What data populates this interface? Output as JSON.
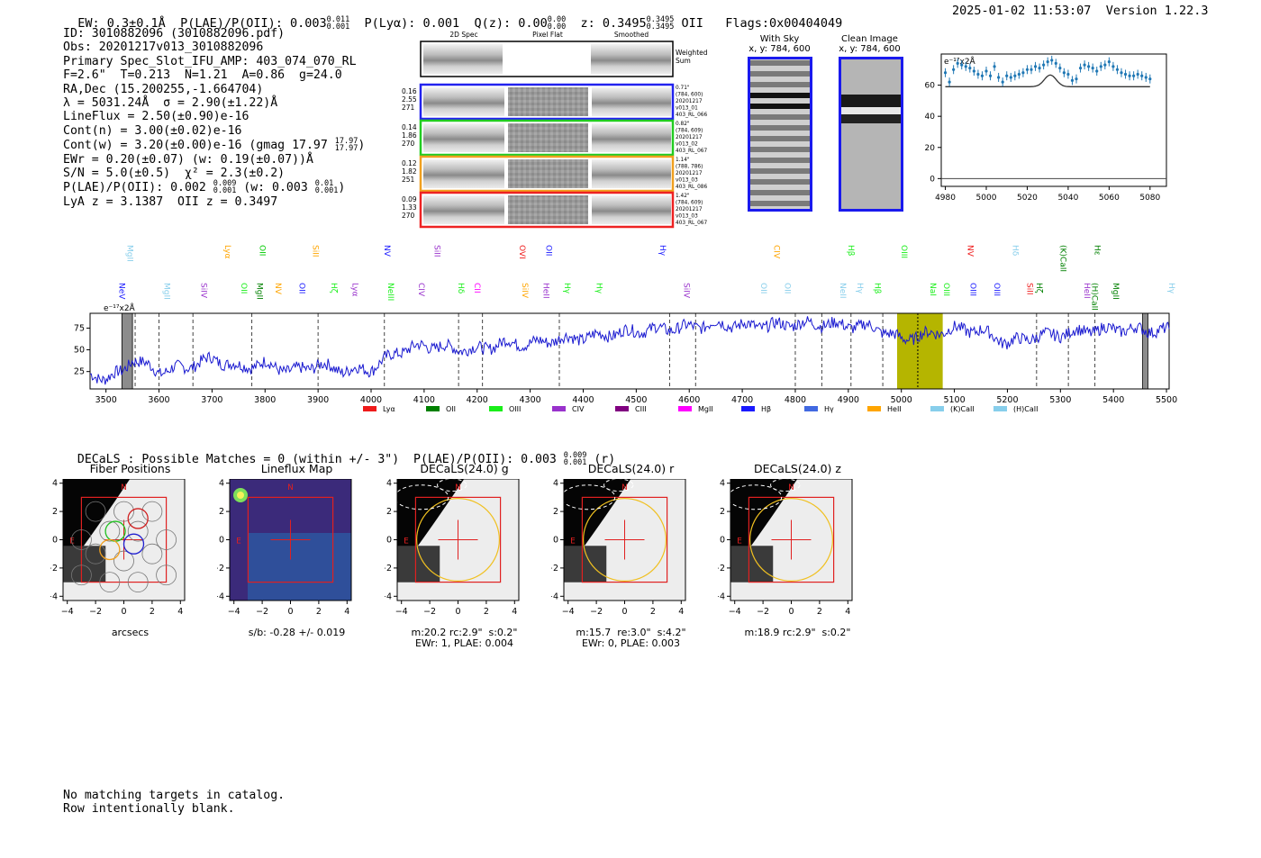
{
  "header": {
    "ew": "EW: 0.3±0.1Å",
    "plae_label": "P(LAE)/P(OII): 0.003",
    "plae_hi": "0.011",
    "plae_lo": "0.001",
    "plya": "P(Lyα): 0.001",
    "qz_label": "Q(z): 0.00",
    "qz_hi": "0.00",
    "qz_lo": "0.00",
    "z_label": "z: 0.3495",
    "z_hi": "0.3495",
    "z_lo": "0.3495",
    "z_line": "OII",
    "flags": "Flags:0x00404049",
    "datetime": "2025-01-02 11:53:07",
    "version": "Version 1.22.3"
  },
  "info": {
    "id": "ID: 3010882096 (3010882096.pdf)",
    "obs": "Obs: 20201217v013_3010882096",
    "primary": "Primary Spec_Slot_IFU_AMP: 403_074_070_RL",
    "fit": "F=2.6\"  T=0.213  N=1.21  A=0.86  g=24.0",
    "radec": "RA,Dec (15.200255,-1.664704)",
    "lambda": "λ = 5031.24Å  σ = 2.90(±1.22)Å",
    "lineflux": "LineFlux = 2.50(±0.90)e-16",
    "contn": "Cont(n) = 3.00(±0.02)e-16",
    "contw": "Cont(w) = 3.20(±0.00)e-16 (gmag 17.97",
    "contw_hi": "17.97",
    "contw_lo": "17.97",
    "contw_end": ")",
    "ewr": "EWr = 0.20(±0.07) (w: 0.19(±0.07))Å",
    "sn": "S/N = 5.0(±0.5)  χ² = 2.3(±0.2)",
    "plae2": "P(LAE)/P(OII): 0.002",
    "plae2_hi": "0.009",
    "plae2_lo": "0.001",
    "plae2_w": "(w: 0.003",
    "plae2_w_hi": "0.01",
    "plae2_w_lo": "0.001",
    "plae2_end": ")",
    "lyaz": "LyA z = 3.1387  OII z = 0.3497"
  },
  "cutouts": {
    "col1": "2D Spec",
    "col2": "Pixel Flat",
    "col3": "Smoothed",
    "weighted": [
      "Weighted",
      "Sum"
    ],
    "rows": [
      {
        "left": [
          "0.16",
          "2.55",
          "271"
        ],
        "right": [
          "0.71\"",
          "(784, 600)",
          "20201217",
          "v013_01",
          "403_RL_066"
        ],
        "color": "#2222ee"
      },
      {
        "left": [
          "0.14",
          "1.86",
          "270"
        ],
        "right": [
          "0.82\"",
          "(784, 609)",
          "20201217",
          "v013_02",
          "403_RL_067"
        ],
        "color": "#22cc22"
      },
      {
        "left": [
          "0.12",
          "1.82",
          "251"
        ],
        "right": [
          "1.14\"",
          "(788, 786)",
          "20201217",
          "v013_03",
          "403_RL_086"
        ],
        "color": "#f0a020"
      },
      {
        "left": [
          "0.09",
          "1.33",
          "270"
        ],
        "right": [
          "1.42\"",
          "(784, 609)",
          "20201217",
          "v013_03",
          "403_RL_067"
        ],
        "color": "#ee2222"
      }
    ],
    "withsky_title": "With Sky",
    "withsky_xy": "x, y: 784, 600",
    "clean_title": "Clean Image",
    "clean_xy": "x, y: 784, 600"
  },
  "zoom_chart": {
    "type": "scatter",
    "ylabel": "e⁻¹⁷x2Å",
    "xlim": [
      4978,
      5088
    ],
    "ylim": [
      -5,
      80
    ],
    "xticks": [
      "4980",
      "5000",
      "5020",
      "5040",
      "5060",
      "5080"
    ],
    "yticks": [
      "0",
      "20",
      "40",
      "60"
    ],
    "x": [
      4980,
      4982,
      4984,
      4986,
      4988,
      4990,
      4992,
      4994,
      4996,
      4998,
      5000,
      5002,
      5004,
      5006,
      5008,
      5010,
      5012,
      5014,
      5016,
      5018,
      5020,
      5022,
      5024,
      5026,
      5028,
      5030,
      5032,
      5034,
      5036,
      5038,
      5040,
      5042,
      5044,
      5046,
      5048,
      5050,
      5052,
      5054,
      5056,
      5058,
      5060,
      5062,
      5064,
      5066,
      5068,
      5070,
      5072,
      5074,
      5076,
      5078,
      5080
    ],
    "values": [
      68,
      62,
      70,
      74,
      73,
      72,
      71,
      69,
      67,
      66,
      69,
      66,
      72,
      65,
      62,
      66,
      65,
      66,
      67,
      68,
      70,
      70,
      72,
      71,
      73,
      75,
      76,
      74,
      71,
      68,
      67,
      63,
      64,
      71,
      73,
      72,
      71,
      69,
      72,
      73,
      75,
      72,
      70,
      68,
      67,
      66,
      66,
      67,
      66,
      65,
      64
    ],
    "model_baseline": 59,
    "model_peak": 66.5,
    "model_center": 5031.24
  },
  "spectrum_chart": {
    "type": "line",
    "ylabel": "e⁻¹⁷x2Å",
    "xlim": [
      3470,
      5505
    ],
    "ylim": [
      5,
      92
    ],
    "xticks": [
      "3500",
      "3600",
      "3700",
      "3800",
      "3900",
      "4000",
      "4100",
      "4200",
      "4300",
      "4400",
      "4500",
      "4600",
      "4700",
      "4800",
      "4900",
      "5000",
      "5100",
      "5200",
      "5300",
      "5400",
      "5500"
    ],
    "yticks": [
      "25",
      "50",
      "75"
    ],
    "anchors_x": [
      3470,
      3500,
      3530,
      3550,
      3600,
      3650,
      3700,
      3750,
      3800,
      3850,
      3900,
      3950,
      4000,
      4050,
      4100,
      4150,
      4200,
      4250,
      4300,
      4350,
      4400,
      4450,
      4500,
      4550,
      4600,
      4650,
      4700,
      4750,
      4800,
      4850,
      4900,
      4950,
      5000,
      5050,
      5100,
      5150,
      5200,
      5250,
      5300,
      5350,
      5400,
      5450,
      5505
    ],
    "anchors_y": [
      20,
      18,
      24,
      40,
      25,
      30,
      40,
      30,
      34,
      25,
      33,
      26,
      28,
      48,
      55,
      52,
      50,
      58,
      57,
      62,
      64,
      68,
      72,
      74,
      76,
      80,
      78,
      78,
      80,
      80,
      78,
      76,
      62,
      68,
      74,
      72,
      58,
      65,
      68,
      72,
      74,
      73,
      72
    ],
    "vlines": [
      3555,
      3600,
      3664,
      3775,
      3900,
      4025,
      4165,
      4210,
      4355,
      4563,
      4612,
      4800,
      4850,
      4905,
      4965,
      5255,
      5315,
      5365
    ],
    "shade_start": 4992,
    "shade_end": 5078,
    "shade_center": 5031,
    "gray_bands": [
      [
        3530,
        3550
      ],
      [
        5455,
        5465
      ]
    ],
    "labels": [
      {
        "x": 3520,
        "text": "NeV",
        "color": "#1a1aff"
      },
      {
        "x": 3535,
        "text": "MgII",
        "color": "#87ceeb"
      },
      {
        "x": 3605,
        "text": "MgII",
        "color": "#87ceeb"
      },
      {
        "x": 3675,
        "text": "SiIV",
        "color": "#9932cc"
      },
      {
        "x": 3720,
        "text": "Lyα",
        "color": "#ffa500"
      },
      {
        "x": 3750,
        "text": "OII",
        "color": "#1aee1a"
      },
      {
        "x": 3780,
        "text": "MgII",
        "color": "#008000"
      },
      {
        "x": 3785,
        "text": "OII",
        "color": "#00cc00"
      },
      {
        "x": 3815,
        "text": "NV",
        "color": "#ffa500"
      },
      {
        "x": 3860,
        "text": "OII",
        "color": "#1a1aff"
      },
      {
        "x": 3885,
        "text": "SiII",
        "color": "#ffa500"
      },
      {
        "x": 3920,
        "text": "Hζ",
        "color": "#1aee1a"
      },
      {
        "x": 3960,
        "text": "Lyα",
        "color": "#9932cc"
      },
      {
        "x": 4020,
        "text": "NV",
        "color": "#1a1aff"
      },
      {
        "x": 4027,
        "text": "NeIII",
        "color": "#1aee1a"
      },
      {
        "x": 4085,
        "text": "CIV",
        "color": "#9932cc"
      },
      {
        "x": 4115,
        "text": "SiII",
        "color": "#9932cc"
      },
      {
        "x": 4160,
        "text": "Hδ",
        "color": "#1aee1a"
      },
      {
        "x": 4190,
        "text": "CII",
        "color": "#ff00ff"
      },
      {
        "x": 4275,
        "text": "OVI",
        "color": "#ee1a1a"
      },
      {
        "x": 4280,
        "text": "SiIV",
        "color": "#ffa500"
      },
      {
        "x": 4320,
        "text": "HeII",
        "color": "#9932cc"
      },
      {
        "x": 4325,
        "text": "OII",
        "color": "#1a1aff"
      },
      {
        "x": 4360,
        "text": "Hγ",
        "color": "#1aee1a"
      },
      {
        "x": 4420,
        "text": "Hγ",
        "color": "#1aee1a"
      },
      {
        "x": 4540,
        "text": "Hγ",
        "color": "#1a1aff"
      },
      {
        "x": 4585,
        "text": "SiIV",
        "color": "#9932cc"
      },
      {
        "x": 4730,
        "text": "OII",
        "color": "#87ceeb"
      },
      {
        "x": 4755,
        "text": "CIV",
        "color": "#ffa500"
      },
      {
        "x": 4775,
        "text": "OII",
        "color": "#87ceeb"
      },
      {
        "x": 4880,
        "text": "NeII",
        "color": "#87ceeb"
      },
      {
        "x": 4895,
        "text": "Hβ",
        "color": "#1aee1a"
      },
      {
        "x": 4912,
        "text": "Hγ",
        "color": "#87ceeb"
      },
      {
        "x": 4945,
        "text": "Hβ",
        "color": "#1aee1a"
      },
      {
        "x": 4995,
        "text": "OIII",
        "color": "#1aee1a"
      },
      {
        "x": 5050,
        "text": "NaI",
        "color": "#1aee1a"
      },
      {
        "x": 5075,
        "text": "OIII",
        "color": "#1aee1a"
      },
      {
        "x": 5120,
        "text": "NV",
        "color": "#ee1a1a"
      },
      {
        "x": 5125,
        "text": "OIII",
        "color": "#1a1aff"
      },
      {
        "x": 5170,
        "text": "OIII",
        "color": "#1a1aff"
      },
      {
        "x": 5205,
        "text": "Hδ",
        "color": "#87ceeb"
      },
      {
        "x": 5232,
        "text": "SiII",
        "color": "#ee1a1a"
      },
      {
        "x": 5250,
        "text": "Hζ",
        "color": "#008000"
      },
      {
        "x": 5295,
        "text": "(K)CaII",
        "color": "#008000"
      },
      {
        "x": 5340,
        "text": "HeII",
        "color": "#9932cc"
      },
      {
        "x": 5355,
        "text": "(H)CaII",
        "color": "#008000"
      },
      {
        "x": 5360,
        "text": "Hε",
        "color": "#008000"
      },
      {
        "x": 5395,
        "text": "MgII",
        "color": "#008000"
      },
      {
        "x": 5500,
        "text": "Hγ",
        "color": "#87ceeb"
      }
    ]
  },
  "legend": [
    {
      "label": "Lyα",
      "color": "#ee1a1a"
    },
    {
      "label": "OII",
      "color": "#008000"
    },
    {
      "label": "OIII",
      "color": "#1aee1a"
    },
    {
      "label": "CIV",
      "color": "#9932cc"
    },
    {
      "label": "CIII",
      "color": "#800080"
    },
    {
      "label": "MgII",
      "color": "#ff00ff"
    },
    {
      "label": "Hβ",
      "color": "#1a1aff"
    },
    {
      "label": "Hγ",
      "color": "#4169e1"
    },
    {
      "label": "HeII",
      "color": "#ffa500"
    },
    {
      "label": "(K)CaII",
      "color": "#87ceeb"
    },
    {
      "label": "(H)CaII",
      "color": "#87ceeb"
    }
  ],
  "decals": {
    "header": "DECaLS : Possible Matches = 0 (within +/- 3\")  P(LAE)/P(OII): 0.003",
    "header_hi": "0.009",
    "header_lo": "0.001",
    "header_end": "(r)",
    "panels": [
      {
        "title": "Fiber Positions",
        "caption": "arcsecs"
      },
      {
        "title": "Lineflux Map",
        "caption": "s/b: -0.28 +/- 0.019"
      },
      {
        "title": "DECaLS(24.0) g",
        "caption": "m:20.2 rc:2.9\"  s:0.2\"\nEWr: 1, PLAE: 0.004"
      },
      {
        "title": "DECaLS(24.0) r",
        "caption": "m:15.7  re:3.0\"  s:4.2\"\nEWr: 0, PLAE: 0.003"
      },
      {
        "title": "DECaLS(24.0) z",
        "caption": "m:18.9 rc:2.9\"  s:0.2\""
      }
    ],
    "ticks": [
      "−4",
      "−2",
      "0",
      "2",
      "4"
    ],
    "north": "N",
    "east": "E"
  },
  "footer": {
    "line1": "No matching targets in catalog.",
    "line2": "Row intentionally blank."
  }
}
